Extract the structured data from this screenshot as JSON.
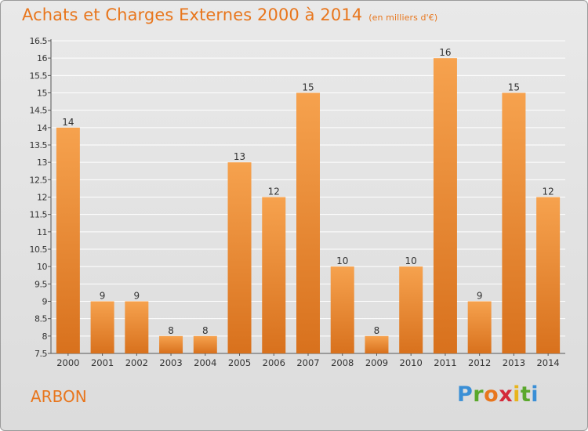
{
  "header": {
    "title": "Achats et Charges Externes 2000 à 2014",
    "unit": "(en milliers d'€)"
  },
  "footer": {
    "commune": "ARBON",
    "logo_letters": [
      "P",
      "r",
      "o",
      "x",
      "i",
      "t",
      "i"
    ],
    "logo_colors": [
      "#3a8fd6",
      "#5aa82c",
      "#e8761d",
      "#d42a3a",
      "#e8b41d",
      "#5aa82c",
      "#3a8fd6"
    ]
  },
  "colors": {
    "accent": "#e8761d",
    "bar_top": "#f6a24e",
    "bar_bottom": "#d8711d",
    "grid": "#ffffff"
  },
  "chart_data": {
    "type": "bar",
    "title": "Achats et Charges Externes 2000 à 2014",
    "categories": [
      "2000",
      "2001",
      "2002",
      "2003",
      "2004",
      "2005",
      "2006",
      "2007",
      "2008",
      "2009",
      "2010",
      "2011",
      "2012",
      "2013",
      "2014"
    ],
    "values": [
      14,
      9,
      9,
      8,
      8,
      13,
      12,
      15,
      10,
      8,
      10,
      16,
      9,
      15,
      12
    ],
    "ylim": [
      7.5,
      16.5
    ],
    "yticks": [
      "7.5",
      "8",
      "8.5",
      "9",
      "9.5",
      "10",
      "10.5",
      "11",
      "11.5",
      "12",
      "12.5",
      "13",
      "13.5",
      "14",
      "14.5",
      "15",
      "15.5",
      "16",
      "16.5"
    ],
    "grid": true,
    "legend": "none"
  }
}
